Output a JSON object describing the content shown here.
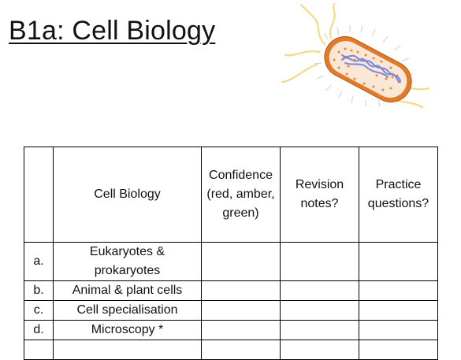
{
  "document": {
    "title": "B1a: Cell Biology"
  },
  "illustration": {
    "icon": "bacterium-icon",
    "colors": {
      "outline": "#e07b2a",
      "cytoplasm": "#fbe7d6",
      "dots": "#e8893a",
      "dna": "#7b88d8",
      "flagella": "#f3d98a"
    }
  },
  "table": {
    "headers": [
      "",
      "Cell Biology",
      "Confidence (red, amber, green)",
      "Revision notes?",
      "Practice questions?"
    ],
    "rows": [
      {
        "letter": "a.",
        "topic": "Eukaryotes & prokaryotes",
        "confidence": "",
        "revision": "",
        "practice": ""
      },
      {
        "letter": "b.",
        "topic": "Animal & plant cells",
        "confidence": "",
        "revision": "",
        "practice": ""
      },
      {
        "letter": "c.",
        "topic": "Cell specialisation",
        "confidence": "",
        "revision": "",
        "practice": ""
      },
      {
        "letter": "d.",
        "topic": "Microscopy *",
        "confidence": "",
        "revision": "",
        "practice": ""
      },
      {
        "letter": "",
        "topic": "",
        "confidence": "",
        "revision": "",
        "practice": ""
      }
    ]
  }
}
